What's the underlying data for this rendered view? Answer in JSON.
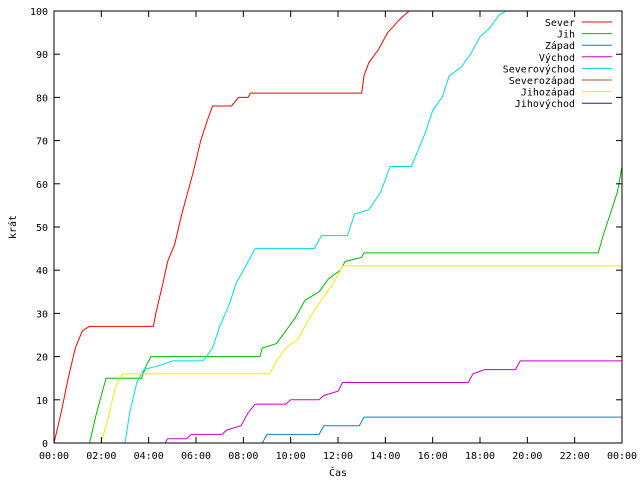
{
  "chart_data": {
    "type": "line",
    "title": "",
    "xlabel": "Čas",
    "ylabel": "krát",
    "xlim": [
      0,
      24
    ],
    "ylim": [
      0,
      100
    ],
    "grid": false,
    "legend_position": "top-right",
    "x_ticks": [
      "00:00",
      "02:00",
      "04:00",
      "06:00",
      "08:00",
      "10:00",
      "12:00",
      "14:00",
      "16:00",
      "18:00",
      "20:00",
      "22:00",
      "00:00"
    ],
    "y_ticks": [
      0,
      10,
      20,
      30,
      40,
      50,
      60,
      70,
      80,
      90,
      100
    ],
    "series": [
      {
        "name": "Sever",
        "color": "#ff0000",
        "points": [
          [
            0,
            0
          ],
          [
            0.3,
            7
          ],
          [
            0.6,
            15
          ],
          [
            0.9,
            22
          ],
          [
            1.2,
            26
          ],
          [
            1.5,
            27
          ],
          [
            4.2,
            27
          ],
          [
            4.3,
            30
          ],
          [
            4.6,
            37
          ],
          [
            4.8,
            42
          ],
          [
            5.1,
            46
          ],
          [
            5.4,
            53
          ],
          [
            5.6,
            57
          ],
          [
            5.9,
            63
          ],
          [
            6.2,
            70
          ],
          [
            6.5,
            75
          ],
          [
            6.7,
            78
          ],
          [
            7.5,
            78
          ],
          [
            7.8,
            80
          ],
          [
            8.2,
            80
          ],
          [
            8.3,
            81
          ],
          [
            13.0,
            81
          ],
          [
            13.1,
            85
          ],
          [
            13.3,
            88
          ],
          [
            13.7,
            91
          ],
          [
            14.1,
            95
          ],
          [
            14.6,
            98
          ],
          [
            15.0,
            100
          ]
        ]
      },
      {
        "name": "Jih",
        "color": "#00bb00",
        "points": [
          [
            1.5,
            0
          ],
          [
            1.8,
            7
          ],
          [
            2.1,
            13
          ],
          [
            2.2,
            15
          ],
          [
            3.7,
            15
          ],
          [
            3.9,
            18
          ],
          [
            4.1,
            20
          ],
          [
            8.7,
            20
          ],
          [
            8.8,
            22
          ],
          [
            9.4,
            23
          ],
          [
            9.8,
            26
          ],
          [
            10.2,
            29
          ],
          [
            10.6,
            33
          ],
          [
            11.2,
            35
          ],
          [
            11.6,
            38
          ],
          [
            12.1,
            40
          ],
          [
            12.3,
            42
          ],
          [
            13.0,
            43
          ],
          [
            13.1,
            44
          ],
          [
            23.0,
            44
          ],
          [
            23.2,
            48
          ],
          [
            23.5,
            53
          ],
          [
            23.8,
            58
          ],
          [
            24.0,
            64
          ]
        ]
      },
      {
        "name": "Západ",
        "color": "#0088cc",
        "points": [
          [
            8.8,
            0
          ],
          [
            9.0,
            2
          ],
          [
            11.2,
            2
          ],
          [
            11.4,
            4
          ],
          [
            12.9,
            4
          ],
          [
            13.1,
            6
          ],
          [
            24.0,
            6
          ]
        ]
      },
      {
        "name": "Východ",
        "color": "#cc00cc",
        "points": [
          [
            4.7,
            0
          ],
          [
            4.8,
            1
          ],
          [
            5.6,
            1
          ],
          [
            5.8,
            2
          ],
          [
            7.1,
            2
          ],
          [
            7.3,
            3
          ],
          [
            7.9,
            4
          ],
          [
            8.2,
            7
          ],
          [
            8.5,
            9
          ],
          [
            9.8,
            9
          ],
          [
            10.0,
            10
          ],
          [
            11.2,
            10
          ],
          [
            11.4,
            11
          ],
          [
            12.0,
            12
          ],
          [
            12.2,
            14
          ],
          [
            17.5,
            14
          ],
          [
            17.7,
            16
          ],
          [
            18.2,
            17
          ],
          [
            19.5,
            17
          ],
          [
            19.7,
            19
          ],
          [
            24.0,
            19
          ]
        ]
      },
      {
        "name": "Severovýchod",
        "color": "#00dddd",
        "points": [
          [
            3.0,
            0
          ],
          [
            3.2,
            7
          ],
          [
            3.5,
            14
          ],
          [
            3.8,
            17
          ],
          [
            4.5,
            18
          ],
          [
            5.0,
            19
          ],
          [
            6.3,
            19
          ],
          [
            6.7,
            22
          ],
          [
            7.0,
            27
          ],
          [
            7.4,
            32
          ],
          [
            7.7,
            37
          ],
          [
            8.1,
            41
          ],
          [
            8.5,
            45
          ],
          [
            11.0,
            45
          ],
          [
            11.3,
            48
          ],
          [
            12.4,
            48
          ],
          [
            12.7,
            53
          ],
          [
            13.3,
            54
          ],
          [
            13.8,
            58
          ],
          [
            14.2,
            64
          ],
          [
            15.1,
            64
          ],
          [
            15.4,
            68
          ],
          [
            15.7,
            72
          ],
          [
            16.0,
            77
          ],
          [
            16.4,
            80
          ],
          [
            16.7,
            85
          ],
          [
            17.2,
            87
          ],
          [
            17.6,
            90
          ],
          [
            18.0,
            94
          ],
          [
            18.4,
            96
          ],
          [
            18.8,
            99
          ],
          [
            19.1,
            100
          ]
        ]
      },
      {
        "name": "Severozápad",
        "color": "#a65628",
        "points": []
      },
      {
        "name": "Jihozápad",
        "color": "#eeee00",
        "points": [
          [
            2.0,
            0
          ],
          [
            2.3,
            6
          ],
          [
            2.6,
            13
          ],
          [
            2.9,
            16
          ],
          [
            9.1,
            16
          ],
          [
            9.4,
            19
          ],
          [
            9.8,
            22
          ],
          [
            10.3,
            24
          ],
          [
            10.8,
            29
          ],
          [
            11.3,
            33
          ],
          [
            11.8,
            37
          ],
          [
            12.2,
            41
          ],
          [
            24.0,
            41
          ]
        ]
      },
      {
        "name": "Jihovýchod",
        "color": "#1a1aaa",
        "points": []
      }
    ]
  }
}
